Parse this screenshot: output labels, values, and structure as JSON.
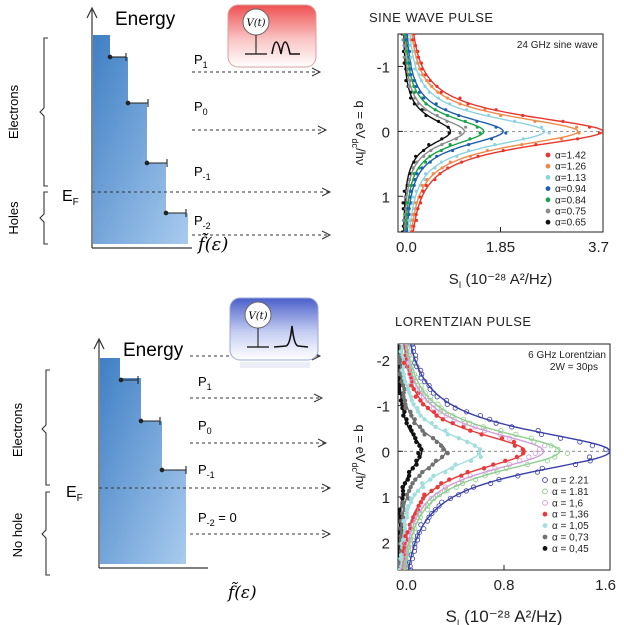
{
  "top": {
    "energy_label": "Energy",
    "fermi_label": "E",
    "fermi_sub": "F",
    "brace_electrons": "Electrons",
    "brace_holes": "Holes",
    "f_label": "f̃(ε)",
    "v_label": "V(t)",
    "p_labels": [
      {
        "main": "P",
        "sub": "1"
      },
      {
        "main": "P",
        "sub": "0"
      },
      {
        "main": "P",
        "sub": "-1"
      },
      {
        "main": "P",
        "sub": "-2"
      }
    ]
  },
  "bottom": {
    "energy_label": "Energy",
    "fermi_label": "E",
    "fermi_sub": "F",
    "brace_electrons": "Electrons",
    "brace_holes": "No hole",
    "f_label": "f̃(ε)",
    "v_label": "V(t)",
    "p_labels": [
      {
        "main": "P",
        "sub": "1"
      },
      {
        "main": "P",
        "sub": "0"
      },
      {
        "main": "P",
        "sub": "-1"
      },
      {
        "main": "P",
        "sub": "-2",
        "suffix": " = 0"
      }
    ]
  },
  "chart_data": [
    {
      "type": "line",
      "title": "SINE WAVE PULSE",
      "annotation": "24 GHz sine wave",
      "xlabel": "S",
      "xlabel_sub": "I",
      "xlabel_unit": "(10⁻²⁸ A²/Hz)",
      "ylabel": "q = eV",
      "ylabel_sub": "dc",
      "ylabel_tail": "/hν",
      "xlim": [
        0,
        3.7
      ],
      "ylim": [
        -1.5,
        1.55
      ],
      "y_inverted": true,
      "x_ticks": [
        "0.0",
        "1.85",
        "3.7"
      ],
      "y_ticks": [
        "-1",
        "0",
        "1"
      ],
      "legend_position": "lower-right",
      "series": [
        {
          "name": "α=1.42",
          "color": "#e8362c",
          "center": 0,
          "peak": 3.7,
          "width": 0.44,
          "base": 0.15
        },
        {
          "name": "α=1.26",
          "color": "#f08a4b",
          "center": 0,
          "peak": 3.25,
          "width": 0.43,
          "base": 0.14
        },
        {
          "name": "α=1.13",
          "color": "#8fd3e0",
          "center": 0,
          "peak": 2.65,
          "width": 0.42,
          "base": 0.13
        },
        {
          "name": "α=0.94",
          "color": "#1f5fae",
          "center": 0,
          "peak": 1.9,
          "width": 0.41,
          "base": 0.11
        },
        {
          "name": "α=0.84",
          "color": "#1aa24b",
          "center": 0,
          "peak": 1.55,
          "width": 0.4,
          "base": 0.1
        },
        {
          "name": "α=0.75",
          "color": "#8c8c8c",
          "center": 0,
          "peak": 1.2,
          "width": 0.39,
          "base": 0.09
        },
        {
          "name": "α=0.65",
          "color": "#111111",
          "center": 0,
          "peak": 0.95,
          "width": 0.38,
          "base": 0.08
        }
      ]
    },
    {
      "type": "line",
      "title": "LORENTZIAN PULSE",
      "annotation": "6 GHz Lorentzian",
      "annotation2": "2W = 30ps",
      "xlabel": "S",
      "xlabel_sub": "I",
      "xlabel_unit": "(10⁻²⁸ A²/Hz)",
      "ylabel": "q = eV",
      "ylabel_sub": "dc",
      "ylabel_tail": "/hν",
      "xlim": [
        0,
        1.6
      ],
      "ylim": [
        -2.35,
        2.6
      ],
      "y_inverted": true,
      "x_ticks": [
        "0.0",
        "0.8",
        "1.6"
      ],
      "y_ticks": [
        "-2",
        "-1",
        "0",
        "1",
        "2"
      ],
      "legend_position": "lower-right",
      "series": [
        {
          "name": "α = 2.21",
          "color": "#3b3fa8",
          "center": 0,
          "peak": 1.6,
          "width": 0.75,
          "base": 0.0
        },
        {
          "name": "α = 1.81",
          "color": "#8fcf8f",
          "center": 0,
          "peak": 1.22,
          "width": 0.72,
          "base": 0.0
        },
        {
          "name": "α = 1,6",
          "color": "#cfa0d8",
          "center": 0,
          "peak": 1.1,
          "width": 0.7,
          "base": 0.0
        },
        {
          "name": "α = 1,36",
          "color": "#e83a3a",
          "center": 0,
          "peak": 0.96,
          "width": 0.66,
          "base": 0.0
        },
        {
          "name": "α = 1,05",
          "color": "#a3dede",
          "center": 0,
          "peak": 0.62,
          "width": 0.62,
          "base": 0.0
        },
        {
          "name": "α = 0,73",
          "color": "#707070",
          "center": 0,
          "peak": 0.36,
          "width": 0.6,
          "base": 0.0
        },
        {
          "name": "α = 0,45",
          "color": "#111111",
          "center": 0,
          "peak": 0.18,
          "width": 0.58,
          "base": 0.0
        }
      ]
    }
  ]
}
